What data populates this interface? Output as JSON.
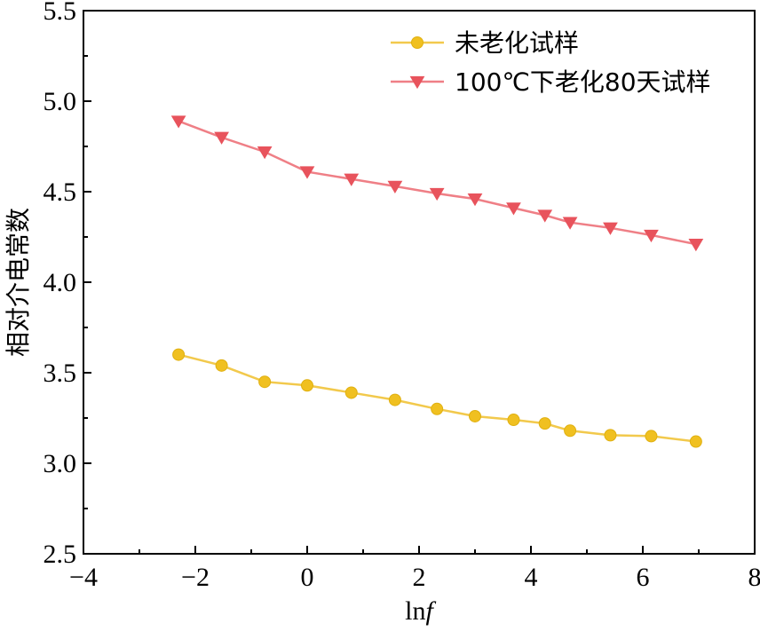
{
  "chart_data": {
    "type": "line",
    "xlabel": "lnf",
    "ylabel": "相对介电常数",
    "xlim": [
      -4,
      8
    ],
    "ylim": [
      2.5,
      5.5
    ],
    "xticks": [
      -4,
      -2,
      0,
      2,
      4,
      6,
      8
    ],
    "yticks": [
      2.5,
      3.0,
      3.5,
      4.0,
      4.5,
      5.0,
      5.5
    ],
    "xtick_labels": [
      "−4",
      "−2",
      "0",
      "2",
      "4",
      "6",
      "8"
    ],
    "ytick_labels": [
      "2.5",
      "3.0",
      "3.5",
      "4.0",
      "4.5",
      "5.0",
      "5.5"
    ],
    "legend_position": "top-right",
    "series": [
      {
        "name": "未老化试样",
        "marker": "circle",
        "color": "#f0c020",
        "line_color": "#f2c94c",
        "x": [
          -2.3,
          -1.53,
          -0.76,
          0.0,
          0.79,
          1.57,
          2.32,
          3.0,
          3.69,
          4.25,
          4.7,
          5.42,
          6.15,
          6.95
        ],
        "y": [
          3.6,
          3.54,
          3.45,
          3.43,
          3.39,
          3.35,
          3.3,
          3.26,
          3.24,
          3.22,
          3.18,
          3.155,
          3.15,
          3.12
        ]
      },
      {
        "name": "100℃下老化80天试样",
        "marker": "triangle-down",
        "color": "#e8535c",
        "line_color": "#ef7f86",
        "x": [
          -2.3,
          -1.53,
          -0.76,
          0.0,
          0.79,
          1.57,
          2.32,
          3.0,
          3.69,
          4.25,
          4.7,
          5.42,
          6.15,
          6.95
        ],
        "y": [
          4.89,
          4.8,
          4.72,
          4.61,
          4.57,
          4.53,
          4.49,
          4.46,
          4.41,
          4.37,
          4.33,
          4.3,
          4.26,
          4.21
        ]
      }
    ]
  }
}
